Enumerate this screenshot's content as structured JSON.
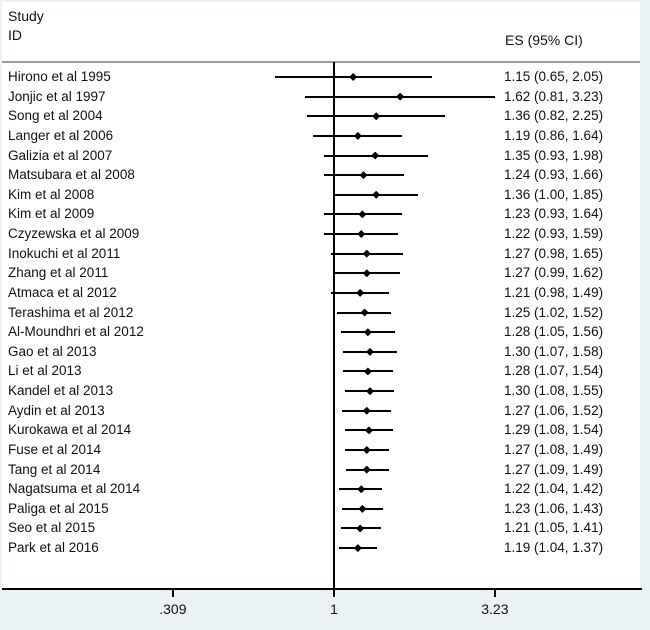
{
  "figure": {
    "header": {
      "study_line1": "Study",
      "study_line2": "ID",
      "es_column": "ES (95% CI)"
    },
    "colors": {
      "background": "#eaf2f3",
      "plot_background": "#ffffff",
      "line": "#000000",
      "separator": "#9a9a9a",
      "text": "#111111"
    }
  },
  "chart_data": {
    "type": "scatter",
    "subtype": "forest-plot",
    "title": "",
    "xlabel": "",
    "ylabel": "",
    "x_axis": {
      "scale": "log",
      "tick_values": [
        0.309,
        1,
        3.23
      ],
      "tick_labels": [
        ".309",
        "1",
        "3.23"
      ],
      "reference_line": 1,
      "xlim": [
        0.309,
        3.23
      ]
    },
    "legend": null,
    "studies": [
      {
        "label": "Hirono et al 1995",
        "es": 1.15,
        "lo": 0.65,
        "hi": 2.05,
        "ci_text": "1.15 (0.65, 2.05)"
      },
      {
        "label": "Jonjic et al 1997",
        "es": 1.62,
        "lo": 0.81,
        "hi": 3.23,
        "ci_text": "1.62 (0.81, 3.23)"
      },
      {
        "label": "Song et al 2004",
        "es": 1.36,
        "lo": 0.82,
        "hi": 2.25,
        "ci_text": "1.36 (0.82, 2.25)"
      },
      {
        "label": "Langer et al 2006",
        "es": 1.19,
        "lo": 0.86,
        "hi": 1.64,
        "ci_text": "1.19 (0.86, 1.64)"
      },
      {
        "label": "Galizia et al 2007",
        "es": 1.35,
        "lo": 0.93,
        "hi": 1.98,
        "ci_text": "1.35 (0.93, 1.98)"
      },
      {
        "label": "Matsubara et al 2008",
        "es": 1.24,
        "lo": 0.93,
        "hi": 1.66,
        "ci_text": "1.24 (0.93, 1.66)"
      },
      {
        "label": "Kim et al 2008",
        "es": 1.36,
        "lo": 1.0,
        "hi": 1.85,
        "ci_text": "1.36 (1.00, 1.85)"
      },
      {
        "label": "Kim et al 2009",
        "es": 1.23,
        "lo": 0.93,
        "hi": 1.64,
        "ci_text": "1.23 (0.93, 1.64)"
      },
      {
        "label": "Czyzewska et al 2009",
        "es": 1.22,
        "lo": 0.93,
        "hi": 1.59,
        "ci_text": "1.22 (0.93, 1.59)"
      },
      {
        "label": "Inokuchi et al 2011",
        "es": 1.27,
        "lo": 0.98,
        "hi": 1.65,
        "ci_text": "1.27 (0.98, 1.65)"
      },
      {
        "label": "Zhang et al 2011",
        "es": 1.27,
        "lo": 0.99,
        "hi": 1.62,
        "ci_text": "1.27 (0.99, 1.62)"
      },
      {
        "label": "Atmaca et al 2012",
        "es": 1.21,
        "lo": 0.98,
        "hi": 1.49,
        "ci_text": "1.21 (0.98, 1.49)"
      },
      {
        "label": "Terashima et al 2012",
        "es": 1.25,
        "lo": 1.02,
        "hi": 1.52,
        "ci_text": "1.25 (1.02, 1.52)"
      },
      {
        "label": "Al-Moundhri et al 2012",
        "es": 1.28,
        "lo": 1.05,
        "hi": 1.56,
        "ci_text": "1.28 (1.05, 1.56)"
      },
      {
        "label": "Gao et al 2013",
        "es": 1.3,
        "lo": 1.07,
        "hi": 1.58,
        "ci_text": "1.30 (1.07, 1.58)"
      },
      {
        "label": "Li et al 2013",
        "es": 1.28,
        "lo": 1.07,
        "hi": 1.54,
        "ci_text": "1.28 (1.07, 1.54)"
      },
      {
        "label": "Kandel et al 2013",
        "es": 1.3,
        "lo": 1.08,
        "hi": 1.55,
        "ci_text": "1.30 (1.08, 1.55)"
      },
      {
        "label": "Aydin et al 2013",
        "es": 1.27,
        "lo": 1.06,
        "hi": 1.52,
        "ci_text": "1.27 (1.06, 1.52)"
      },
      {
        "label": "Kurokawa et al 2014",
        "es": 1.29,
        "lo": 1.08,
        "hi": 1.54,
        "ci_text": "1.29 (1.08, 1.54)"
      },
      {
        "label": "Fuse et al 2014",
        "es": 1.27,
        "lo": 1.08,
        "hi": 1.49,
        "ci_text": "1.27 (1.08, 1.49)"
      },
      {
        "label": "Tang et al 2014",
        "es": 1.27,
        "lo": 1.09,
        "hi": 1.49,
        "ci_text": "1.27 (1.09, 1.49)"
      },
      {
        "label": "Nagatsuma et al 2014",
        "es": 1.22,
        "lo": 1.04,
        "hi": 1.42,
        "ci_text": "1.22 (1.04, 1.42)"
      },
      {
        "label": "Paliga et al 2015",
        "es": 1.23,
        "lo": 1.06,
        "hi": 1.43,
        "ci_text": "1.23 (1.06, 1.43)"
      },
      {
        "label": "Seo et al 2015",
        "es": 1.21,
        "lo": 1.05,
        "hi": 1.41,
        "ci_text": "1.21 (1.05, 1.41)"
      },
      {
        "label": "Park et al 2016",
        "es": 1.19,
        "lo": 1.04,
        "hi": 1.37,
        "ci_text": "1.19 (1.04, 1.37)"
      }
    ]
  }
}
